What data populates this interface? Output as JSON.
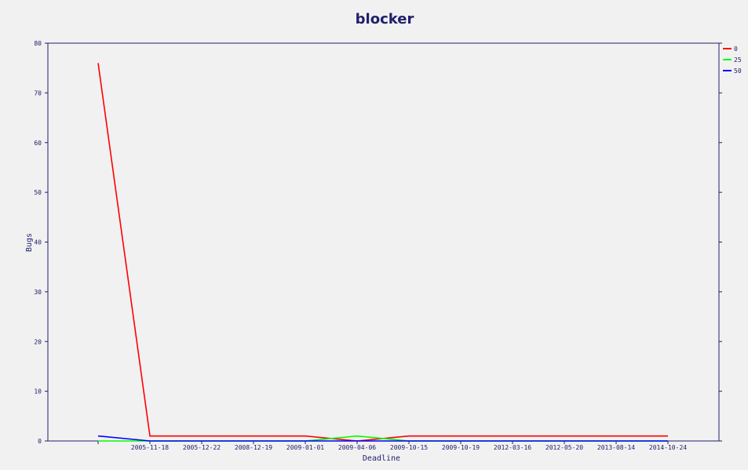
{
  "chart_data": {
    "type": "line",
    "title": "blocker",
    "xlabel": "Deadline",
    "ylabel": "Bugs",
    "ylim": [
      0,
      80
    ],
    "yticks": [
      0,
      10,
      20,
      30,
      40,
      50,
      60,
      70,
      80
    ],
    "categories": [
      "",
      "2005-11-18",
      "2005-12-22",
      "2008-12-19",
      "2009-01-01",
      "2009-04-06",
      "2009-10-15",
      "2009-10-19",
      "2012-03-16",
      "2012-05-20",
      "2013-08-14",
      "2014-10-24"
    ],
    "legend_position": "right",
    "series": [
      {
        "name": "0",
        "color": "#ff0000",
        "values": [
          76,
          1,
          1,
          1,
          1,
          0,
          1,
          1,
          1,
          1,
          1,
          1
        ]
      },
      {
        "name": "25",
        "color": "#00ff00",
        "values": [
          0,
          0,
          0,
          0,
          0,
          1,
          0,
          0,
          0,
          0,
          0,
          0
        ]
      },
      {
        "name": "50",
        "color": "#0000ff",
        "values": [
          1,
          0,
          0,
          0,
          0,
          0,
          0,
          0,
          0,
          0,
          0,
          0
        ]
      }
    ]
  }
}
